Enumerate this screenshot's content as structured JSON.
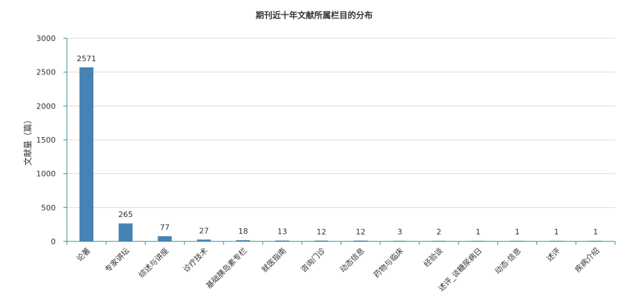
{
  "chart_data": {
    "type": "bar",
    "title": "期刊近十年文献所属栏目的分布",
    "ylabel": "文献量（篇）",
    "xlabel": "",
    "ylim": [
      0,
      3000
    ],
    "yticks": [
      0,
      500,
      1000,
      1500,
      2000,
      2500,
      3000
    ],
    "grid": true,
    "bar_color": "#4682b4",
    "categories": [
      "论著",
      "专家讲坛",
      "综述与讲座",
      "诊疗技术",
      "基础胰岛素专栏",
      "就医指南",
      "咨询门诊",
      "动态信息",
      "药物与临床",
      "经验谈",
      "述评_谈糖尿病日",
      "动态·信息",
      "述评",
      "疾病介绍"
    ],
    "values": [
      2571,
      265,
      77,
      27,
      18,
      13,
      12,
      12,
      3,
      2,
      1,
      1,
      1,
      1
    ]
  }
}
